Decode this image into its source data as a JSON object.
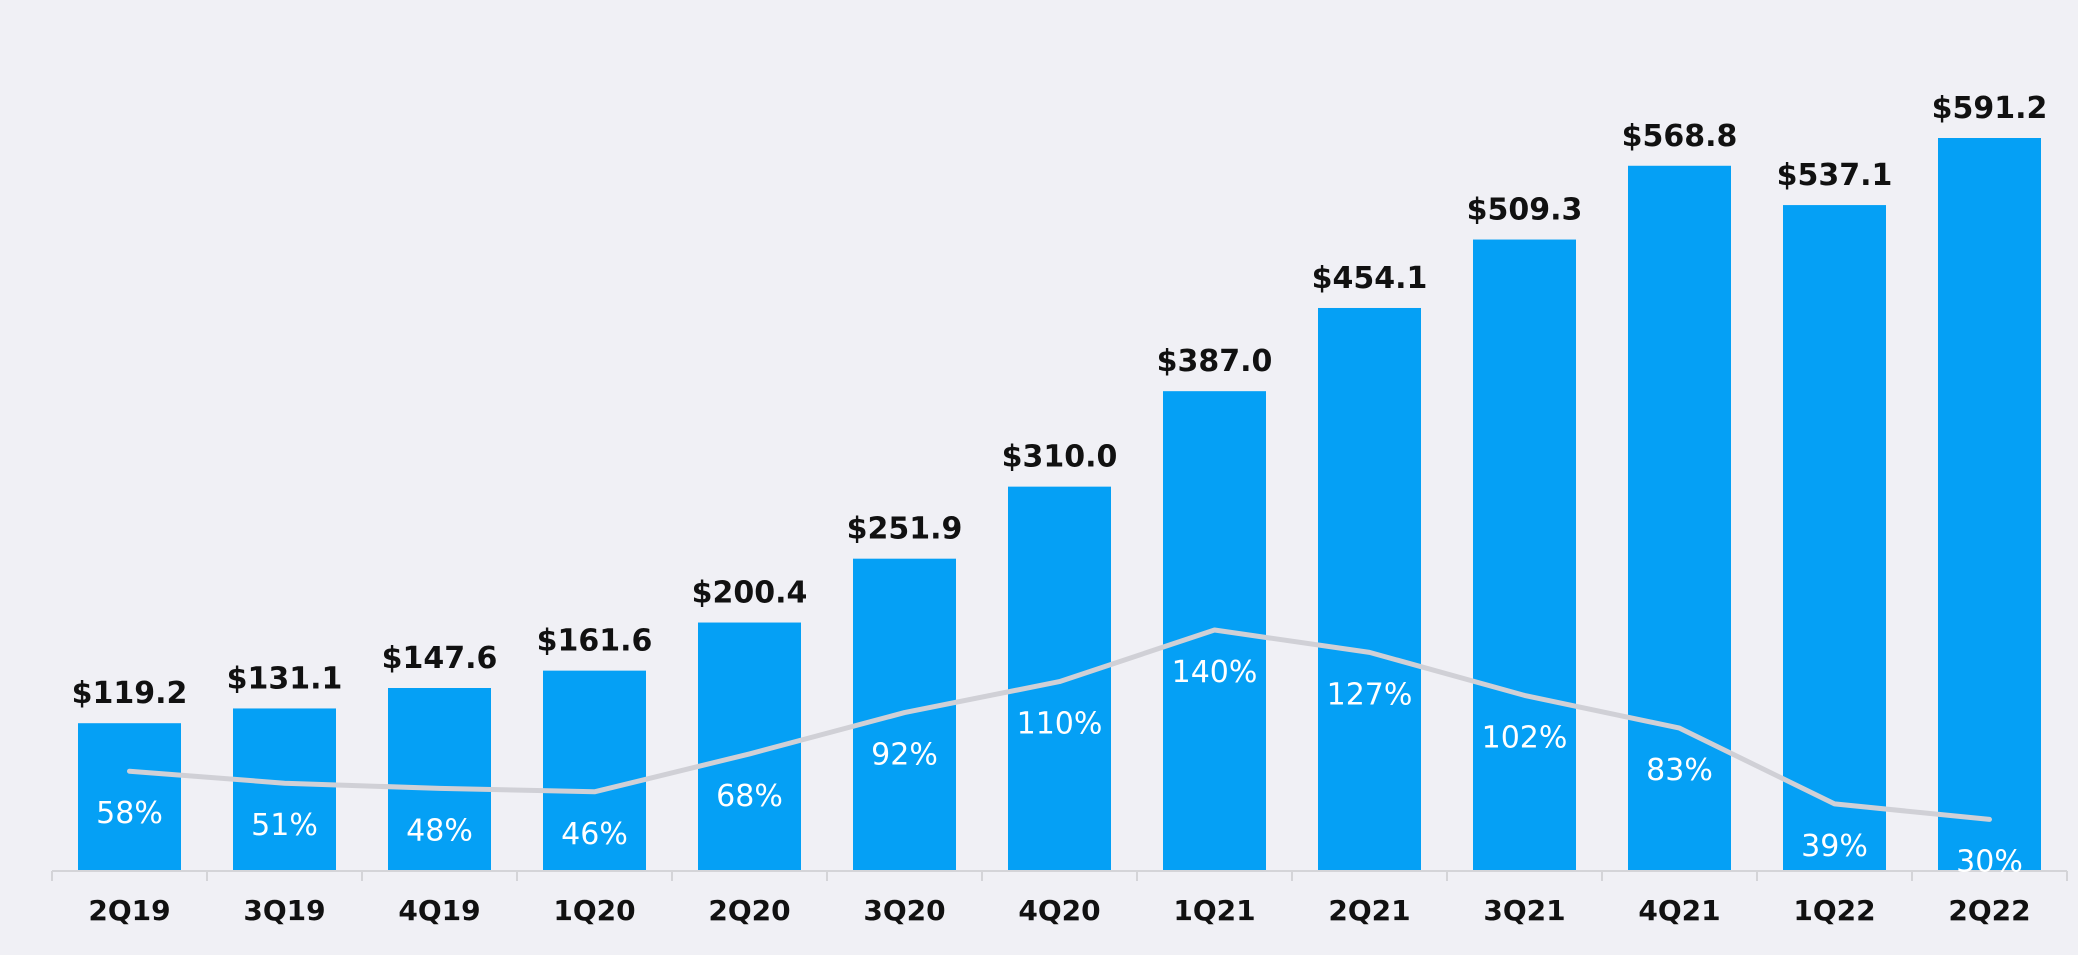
{
  "chart_data": {
    "type": "bar",
    "categories": [
      "2Q19",
      "3Q19",
      "4Q19",
      "1Q20",
      "2Q20",
      "3Q20",
      "4Q20",
      "1Q21",
      "2Q21",
      "3Q21",
      "4Q21",
      "1Q22",
      "2Q22"
    ],
    "series": [
      {
        "values": [
          119.2,
          131.1,
          147.6,
          161.6,
          200.4,
          251.9,
          310.0,
          387.0,
          454.1,
          509.3,
          568.8,
          537.1,
          591.2
        ],
        "labels": [
          "$119.2",
          "$131.1",
          "$147.6",
          "$161.6",
          "$200.4",
          "$251.9",
          "$310.0",
          "$387.0",
          "$454.1",
          "$509.3",
          "$568.8",
          "$537.1",
          "$591.2"
        ],
        "color": "#05a0f5"
      },
      {
        "type": "line",
        "values": [
          58,
          51,
          48,
          46,
          68,
          92,
          110,
          140,
          127,
          102,
          83,
          39,
          30
        ],
        "labels": [
          "58%",
          "51%",
          "48%",
          "46%",
          "68%",
          "92%",
          "110%",
          "140%",
          "127%",
          "102%",
          "83%",
          "39%",
          "30%"
        ],
        "color": "#d0d0d6"
      }
    ],
    "ylim": [
      0,
      620
    ],
    "y2lim": [
      0,
      310
    ],
    "grid": false,
    "legend": "none",
    "title": "",
    "xlabel": "",
    "ylabel": ""
  }
}
